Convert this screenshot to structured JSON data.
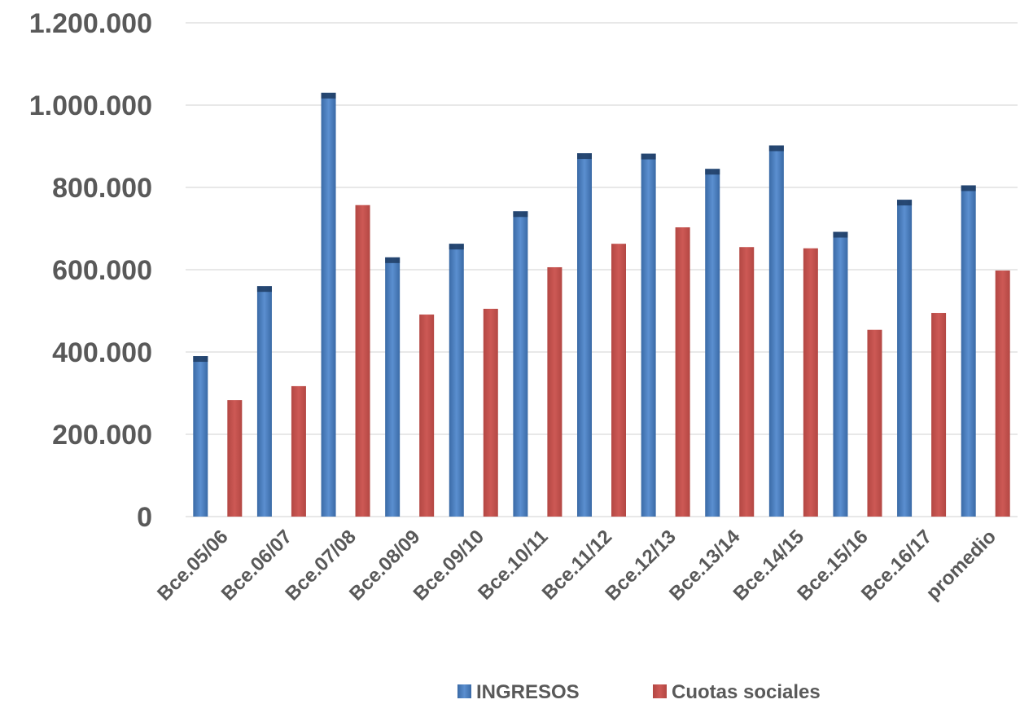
{
  "chart_data": {
    "type": "bar",
    "categories": [
      "Bce.05/06",
      "Bce.06/07",
      "Bce.07/08",
      "Bce.08/09",
      "Bce.09/10",
      "Bce.10/11",
      "Bce.11/12",
      "Bce.12/13",
      "Bce.13/14",
      "Bce.14/15",
      "Bce.15/16",
      "Bce.16/17",
      "promedio"
    ],
    "series": [
      {
        "name": "INGRESOS",
        "color": "#4f81bd",
        "values": [
          390000,
          560000,
          1030000,
          630000,
          663000,
          742000,
          883000,
          882000,
          845000,
          902000,
          692000,
          770000,
          805000
        ]
      },
      {
        "name": "Cuotas sociales",
        "color": "#c0504d",
        "values": [
          283000,
          317000,
          757000,
          491000,
          505000,
          606000,
          663000,
          703000,
          655000,
          652000,
          454000,
          495000,
          598000
        ]
      }
    ],
    "ylim": [
      0,
      1200000
    ],
    "yticks": [
      0,
      200000,
      400000,
      600000,
      800000,
      1000000,
      1200000
    ],
    "ytick_labels": [
      "0",
      "200.000",
      "400.000",
      "600.000",
      "800.000",
      "1.000.000",
      "1.200.000"
    ],
    "grid": true,
    "legend": "bottom"
  }
}
